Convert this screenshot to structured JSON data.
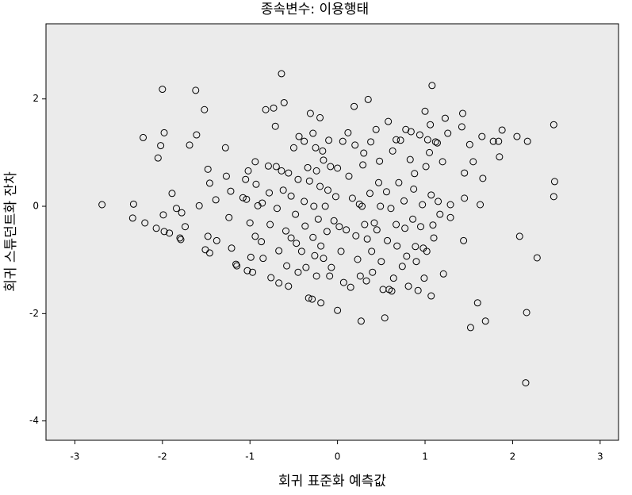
{
  "chart_data": {
    "type": "scatter",
    "title": "종속변수: 이용행태",
    "x_label": "회귀 표준화 예측값",
    "y_label": "회귀 스튜던트화 잔차",
    "color": "#000000",
    "xlim": [
      -3.33,
      3.21
    ],
    "ylim": [
      -4.36,
      3.4
    ],
    "xticks": [
      -3,
      -2,
      -1,
      0,
      1,
      2,
      3
    ],
    "yticks": [
      -4,
      -2,
      0,
      2
    ],
    "x": [
      -2.69,
      -2.33,
      -2.34,
      -2.22,
      -2.2,
      -2.07,
      -2.0,
      -1.98,
      -2.02,
      -2.05,
      -1.99,
      -1.98,
      -1.92,
      -1.89,
      -1.84,
      -1.78,
      -1.8,
      -1.79,
      -1.74,
      -1.69,
      -1.62,
      -1.61,
      -1.58,
      -1.52,
      -1.48,
      -1.46,
      -1.51,
      -1.46,
      -1.48,
      -1.39,
      -1.38,
      -1.28,
      -1.27,
      -1.24,
      -1.22,
      -1.21,
      -1.16,
      -1.15,
      -1.08,
      -1.05,
      -1.04,
      -1.02,
      -1.0,
      -1.03,
      -0.97,
      -0.99,
      -0.94,
      -0.93,
      -0.91,
      -0.94,
      -0.87,
      -0.86,
      -0.85,
      -0.82,
      -0.79,
      -0.78,
      -0.77,
      -0.76,
      -0.73,
      -0.71,
      -0.7,
      -0.69,
      -0.67,
      -0.67,
      -0.64,
      -0.61,
      -0.64,
      -0.62,
      -0.59,
      -0.58,
      -0.56,
      -0.56,
      -0.53,
      -0.53,
      -0.5,
      -0.48,
      -0.47,
      -0.45,
      -0.45,
      -0.44,
      -0.41,
      -0.38,
      -0.38,
      -0.37,
      -0.36,
      -0.34,
      -0.33,
      -0.32,
      -0.31,
      -0.29,
      -0.28,
      -0.28,
      -0.27,
      -0.26,
      -0.25,
      -0.24,
      -0.24,
      -0.22,
      -0.2,
      -0.2,
      -0.19,
      -0.19,
      -0.17,
      -0.16,
      -0.16,
      -0.14,
      -0.12,
      -0.11,
      -0.1,
      -0.09,
      -0.08,
      -0.07,
      -0.04,
      -0.02,
      0.0,
      0.0,
      0.02,
      0.04,
      0.06,
      0.07,
      0.1,
      0.12,
      0.13,
      0.15,
      0.17,
      0.19,
      0.2,
      0.21,
      0.23,
      0.25,
      0.26,
      0.27,
      0.28,
      0.29,
      0.3,
      0.31,
      0.33,
      0.34,
      0.35,
      0.37,
      0.38,
      0.39,
      0.4,
      0.42,
      0.44,
      0.45,
      0.47,
      0.48,
      0.49,
      0.5,
      0.52,
      0.54,
      0.56,
      0.57,
      0.58,
      0.59,
      0.61,
      0.62,
      0.63,
      0.64,
      0.67,
      0.67,
      0.68,
      0.7,
      0.72,
      0.74,
      0.76,
      0.77,
      0.78,
      0.79,
      0.81,
      0.83,
      0.84,
      0.86,
      0.87,
      0.88,
      0.89,
      0.9,
      0.92,
      0.94,
      0.95,
      0.97,
      0.98,
      0.99,
      1.0,
      1.01,
      1.02,
      1.03,
      1.05,
      1.06,
      1.07,
      1.07,
      1.08,
      1.09,
      1.1,
      1.12,
      1.14,
      1.15,
      1.17,
      1.2,
      1.21,
      1.23,
      1.26,
      1.29,
      1.29,
      1.42,
      1.43,
      1.45,
      1.44,
      1.45,
      1.51,
      1.52,
      1.55,
      1.6,
      1.63,
      1.65,
      1.66,
      1.69,
      1.78,
      1.84,
      1.85,
      1.88,
      2.05,
      2.08,
      2.16,
      2.17,
      2.15,
      2.28,
      2.47,
      2.48,
      2.47
    ],
    "values": [
      0.03,
      0.04,
      -0.22,
      1.28,
      -0.31,
      -0.41,
      2.18,
      1.37,
      1.13,
      0.9,
      -0.16,
      -0.47,
      -0.5,
      0.24,
      -0.04,
      -0.12,
      -0.59,
      -0.62,
      -0.38,
      1.14,
      2.16,
      1.33,
      0.01,
      1.8,
      0.69,
      0.43,
      -0.81,
      -0.87,
      -0.56,
      0.12,
      -0.64,
      1.09,
      0.56,
      -0.21,
      0.28,
      -0.78,
      -1.08,
      -1.11,
      0.16,
      0.5,
      0.13,
      0.66,
      -0.31,
      -1.2,
      -1.23,
      -0.95,
      0.83,
      0.41,
      0.01,
      -0.56,
      -0.66,
      0.06,
      -0.97,
      1.8,
      0.75,
      0.25,
      -0.34,
      -1.33,
      1.83,
      1.49,
      0.74,
      -0.04,
      -0.83,
      -1.43,
      2.47,
      1.93,
      0.66,
      0.3,
      -0.46,
      -1.11,
      -1.49,
      0.62,
      0.19,
      -0.59,
      1.09,
      -0.15,
      -0.69,
      0.5,
      -1.23,
      1.3,
      -0.84,
      1.21,
      0.09,
      -0.37,
      -1.14,
      0.72,
      -1.71,
      0.47,
      1.73,
      -1.73,
      1.36,
      -0.58,
      0.0,
      -0.92,
      1.09,
      -1.3,
      0.66,
      -0.24,
      1.65,
      0.37,
      -0.74,
      -1.8,
      1.03,
      0.86,
      -0.97,
      0.0,
      -0.47,
      0.3,
      1.23,
      -1.3,
      0.74,
      -1.14,
      -0.27,
      0.18,
      0.71,
      -1.94,
      -0.38,
      -0.84,
      1.21,
      -1.42,
      -0.44,
      1.37,
      0.56,
      -1.51,
      0.15,
      1.86,
      1.14,
      -0.55,
      -0.99,
      0.04,
      -1.3,
      -2.14,
      0.0,
      0.77,
      0.99,
      -0.34,
      -1.39,
      -0.61,
      1.99,
      0.24,
      1.2,
      -0.84,
      -1.23,
      -0.31,
      1.43,
      -0.44,
      0.44,
      0.84,
      0.0,
      -1.03,
      -1.55,
      -2.08,
      0.27,
      -0.64,
      1.58,
      -1.55,
      -0.04,
      -1.58,
      1.03,
      -1.34,
      -0.34,
      1.24,
      -0.74,
      0.44,
      1.23,
      -1.12,
      0.1,
      -0.41,
      1.43,
      -0.93,
      -1.49,
      0.87,
      1.39,
      -0.24,
      0.32,
      0.61,
      -0.75,
      -1.03,
      -1.57,
      1.33,
      -0.38,
      0.03,
      -0.78,
      -1.34,
      1.77,
      0.74,
      -0.84,
      1.24,
      1.0,
      1.52,
      -1.67,
      0.21,
      2.25,
      -0.35,
      -0.59,
      1.2,
      1.18,
      0.09,
      -0.15,
      0.83,
      -1.26,
      1.64,
      1.36,
      0.03,
      -0.21,
      1.48,
      1.73,
      0.62,
      -0.64,
      0.15,
      1.15,
      -2.26,
      0.83,
      -1.8,
      0.03,
      1.3,
      0.52,
      -2.14,
      1.21,
      1.21,
      0.92,
      1.42,
      1.3,
      -0.56,
      -1.98,
      1.21,
      -3.29,
      -0.96,
      1.52,
      0.46,
      0.18
    ]
  }
}
